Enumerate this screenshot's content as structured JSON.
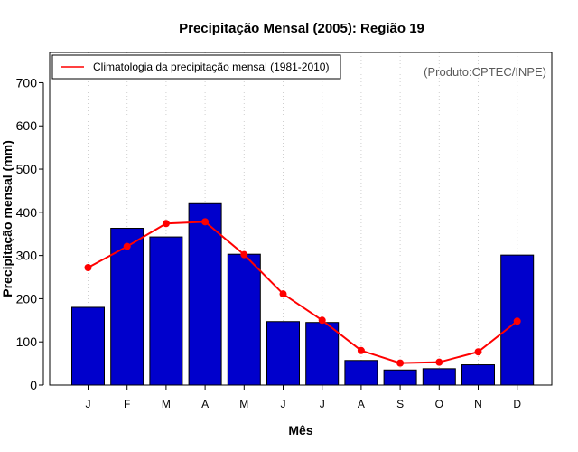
{
  "chart_data": {
    "type": "bar",
    "title": "Precipitação Mensal (2005): Região 19",
    "xlabel": "Mês",
    "ylabel": "Precipitação mensal (mm)",
    "categories": [
      "J",
      "F",
      "M",
      "A",
      "M",
      "J",
      "J",
      "A",
      "S",
      "O",
      "N",
      "D"
    ],
    "ylim": [
      0,
      770
    ],
    "yticks": [
      0,
      100,
      200,
      300,
      400,
      500,
      600,
      700
    ],
    "ytick_labels": [
      "0",
      "100",
      "200",
      "300",
      "400",
      "500",
      "600",
      "700"
    ],
    "grid": "vertical dotted",
    "series": [
      {
        "name": "2005",
        "type": "bar",
        "color": "#0000cc",
        "values": [
          180,
          363,
          343,
          420,
          303,
          147,
          145,
          57,
          35,
          38,
          47,
          301
        ]
      },
      {
        "name": "Climatologia da precipitação mensal (1981-2010)",
        "type": "line",
        "color": "#ff0000",
        "values": [
          272,
          321,
          374,
          378,
          302,
          211,
          150,
          80,
          51,
          53,
          77,
          148
        ]
      }
    ],
    "legend": {
      "position": "top-left",
      "entries": [
        "Climatologia da precipitação mensal (1981-2010)"
      ]
    },
    "annotation": "(Produto:CPTEC/INPE)"
  }
}
